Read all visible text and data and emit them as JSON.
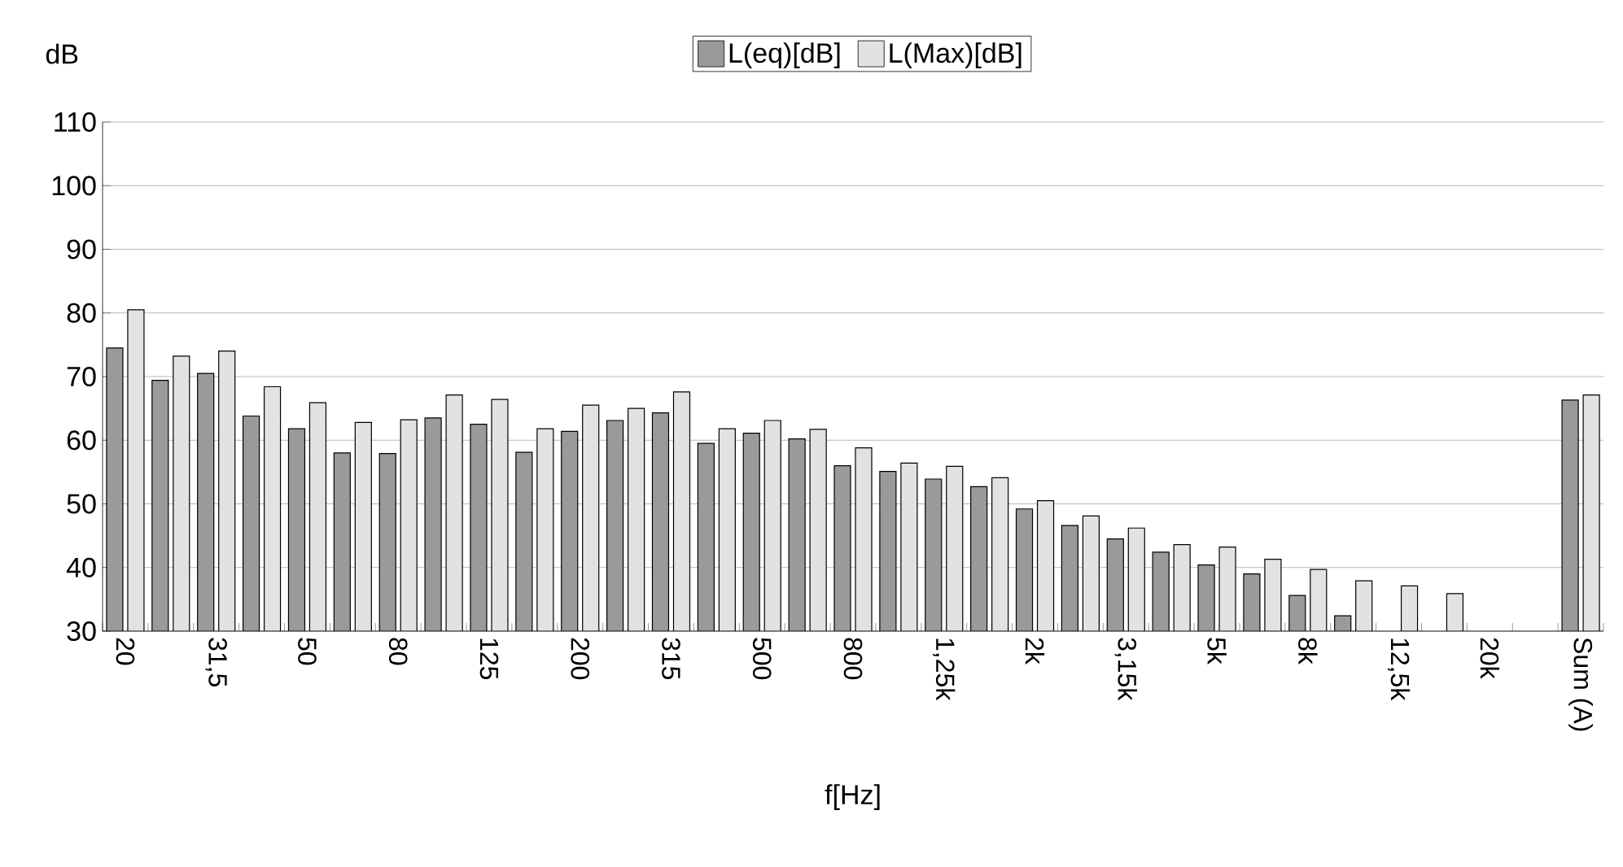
{
  "chart_data": {
    "type": "bar",
    "xlabel": "f[Hz]",
    "ylabel": "dB",
    "categories": [
      "20",
      null,
      "31,5",
      null,
      "50",
      null,
      "80",
      null,
      "125",
      null,
      "200",
      null,
      "315",
      null,
      "500",
      null,
      "800",
      null,
      "1,25k",
      null,
      "2k",
      null,
      "3,15k",
      null,
      "5k",
      null,
      "8k",
      null,
      "12,5k",
      null,
      "20k",
      null,
      "Sum (A)"
    ],
    "series": [
      {
        "name": "L(eq)[dB]",
        "color": "#9a9a9a",
        "values": [
          74.5,
          69.4,
          70.5,
          63.8,
          61.8,
          58.0,
          57.9,
          63.5,
          62.5,
          58.1,
          61.4,
          63.1,
          64.3,
          59.5,
          61.1,
          60.2,
          56.0,
          55.1,
          53.9,
          52.7,
          49.2,
          46.6,
          44.5,
          42.4,
          40.4,
          39.0,
          35.6,
          32.4,
          null,
          null,
          null,
          null,
          66.3
        ]
      },
      {
        "name": "L(Max)[dB]",
        "color": "#e2e2e2",
        "values": [
          80.5,
          73.2,
          74.0,
          68.4,
          65.9,
          62.8,
          63.2,
          67.1,
          66.4,
          61.8,
          65.5,
          65.0,
          67.6,
          61.8,
          63.1,
          61.7,
          58.8,
          56.4,
          55.9,
          54.1,
          50.5,
          48.1,
          46.2,
          43.6,
          43.2,
          41.3,
          39.7,
          37.9,
          37.1,
          35.9,
          null,
          null,
          67.1
        ]
      }
    ],
    "ylim": [
      30,
      110
    ],
    "yticks": [
      30,
      40,
      50,
      60,
      70,
      80,
      90,
      100,
      110
    ],
    "grid": "y",
    "legend": "top"
  }
}
